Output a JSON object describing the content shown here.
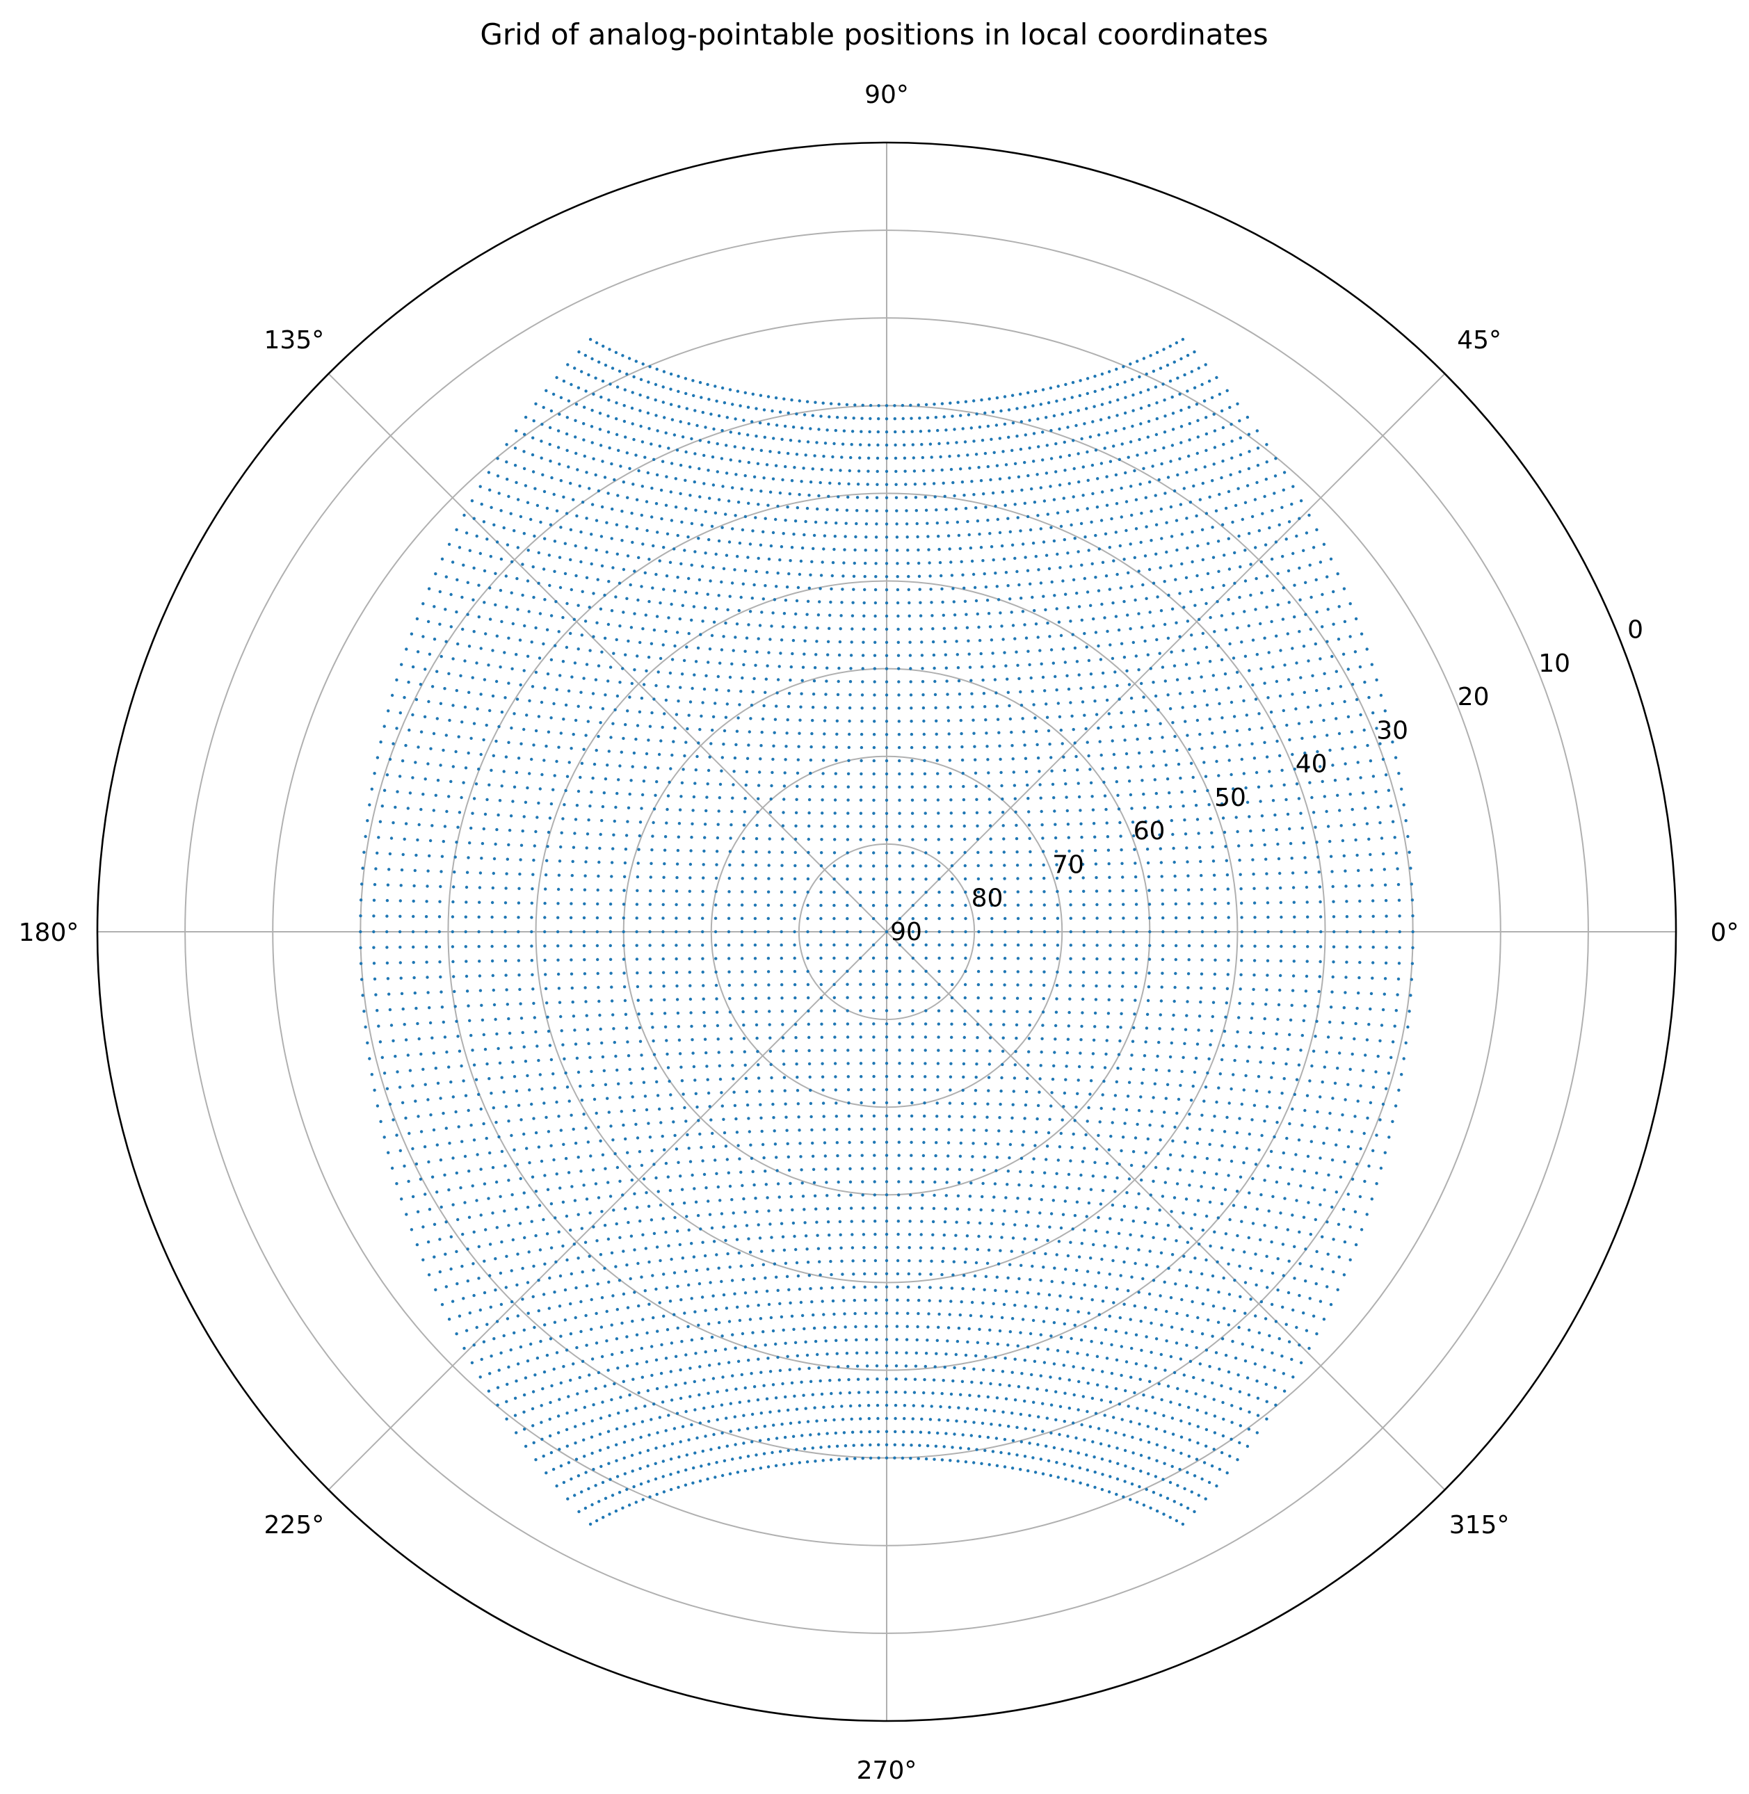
{
  "chart_data": {
    "type": "scatter",
    "projection": "polar",
    "title": "Grid of analog-pointable positions in local coordinates",
    "theta_ticks": [
      "0°",
      "45°",
      "90°",
      "135°",
      "180°",
      "225°",
      "270°",
      "315°"
    ],
    "theta_tick_values_deg": [
      0,
      45,
      90,
      135,
      180,
      225,
      270,
      315
    ],
    "r_ticks": [
      "0",
      "10",
      "20",
      "30",
      "40",
      "50",
      "60",
      "70",
      "80",
      "90"
    ],
    "r_tick_values": [
      0,
      10,
      20,
      30,
      40,
      50,
      60,
      70,
      80,
      90
    ],
    "r_axis_inverted": true,
    "r_tick_label_angle_deg": 22.5,
    "rlim": [
      0,
      90
    ],
    "grid": true,
    "marker": "point",
    "point_color": "#1f77b4",
    "grid_color": "#b0b0b0",
    "axis_color": "#000000",
    "grid_spacing_deg": 1.5,
    "grid_extent_deg": [
      -60,
      60
    ],
    "points_description": "Regular grid of pointing offsets in two perpendicular axes from -60° to +60° in 1.5° steps, plotted as azimuth vs. elevation"
  }
}
